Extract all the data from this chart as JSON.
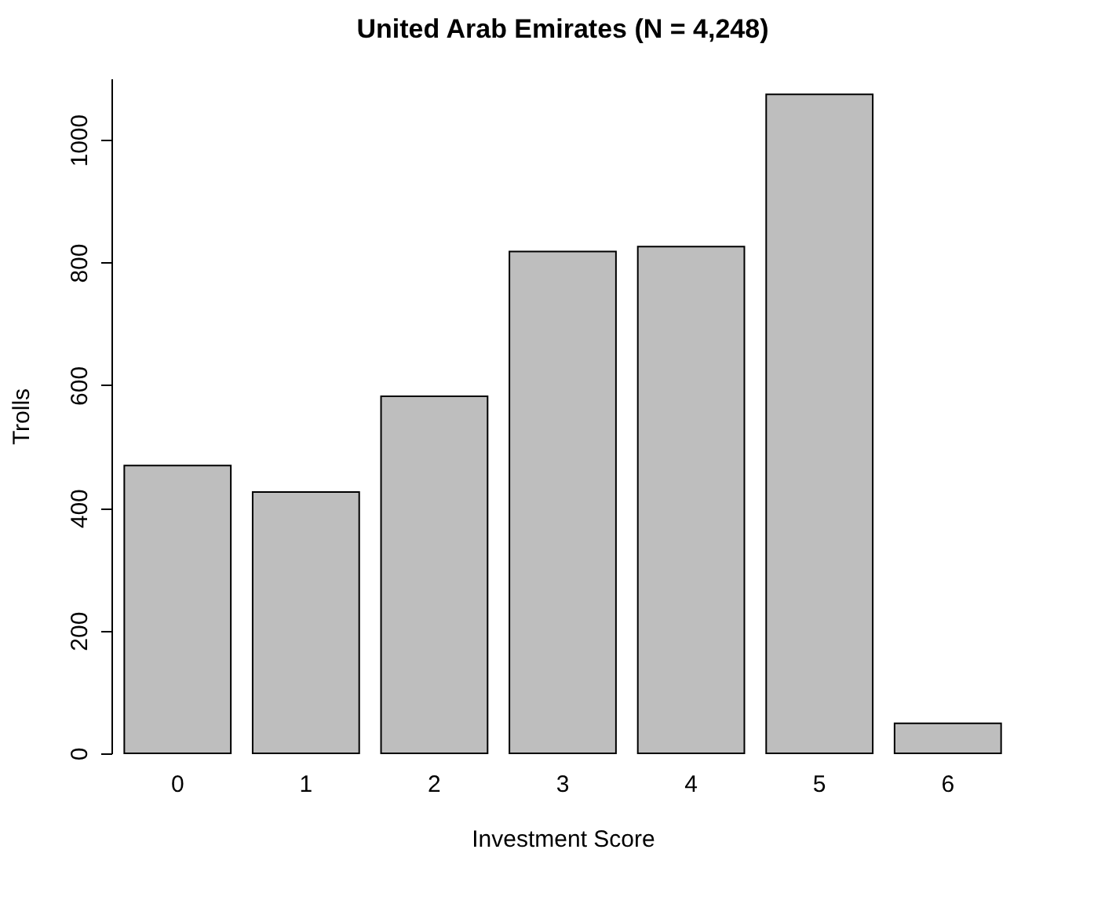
{
  "chart_data": {
    "type": "bar",
    "title": "United Arab Emirates (N = 4,248)",
    "xlabel": "Investment Score",
    "ylabel": "Trolls",
    "categories": [
      "0",
      "1",
      "2",
      "3",
      "4",
      "5",
      "6"
    ],
    "values": [
      469,
      426,
      582,
      818,
      826,
      1074,
      49
    ],
    "color": "#bebebe",
    "ylim": [
      0,
      1100
    ],
    "yticks": [
      0,
      200,
      400,
      600,
      800,
      1000
    ],
    "grid": false
  }
}
